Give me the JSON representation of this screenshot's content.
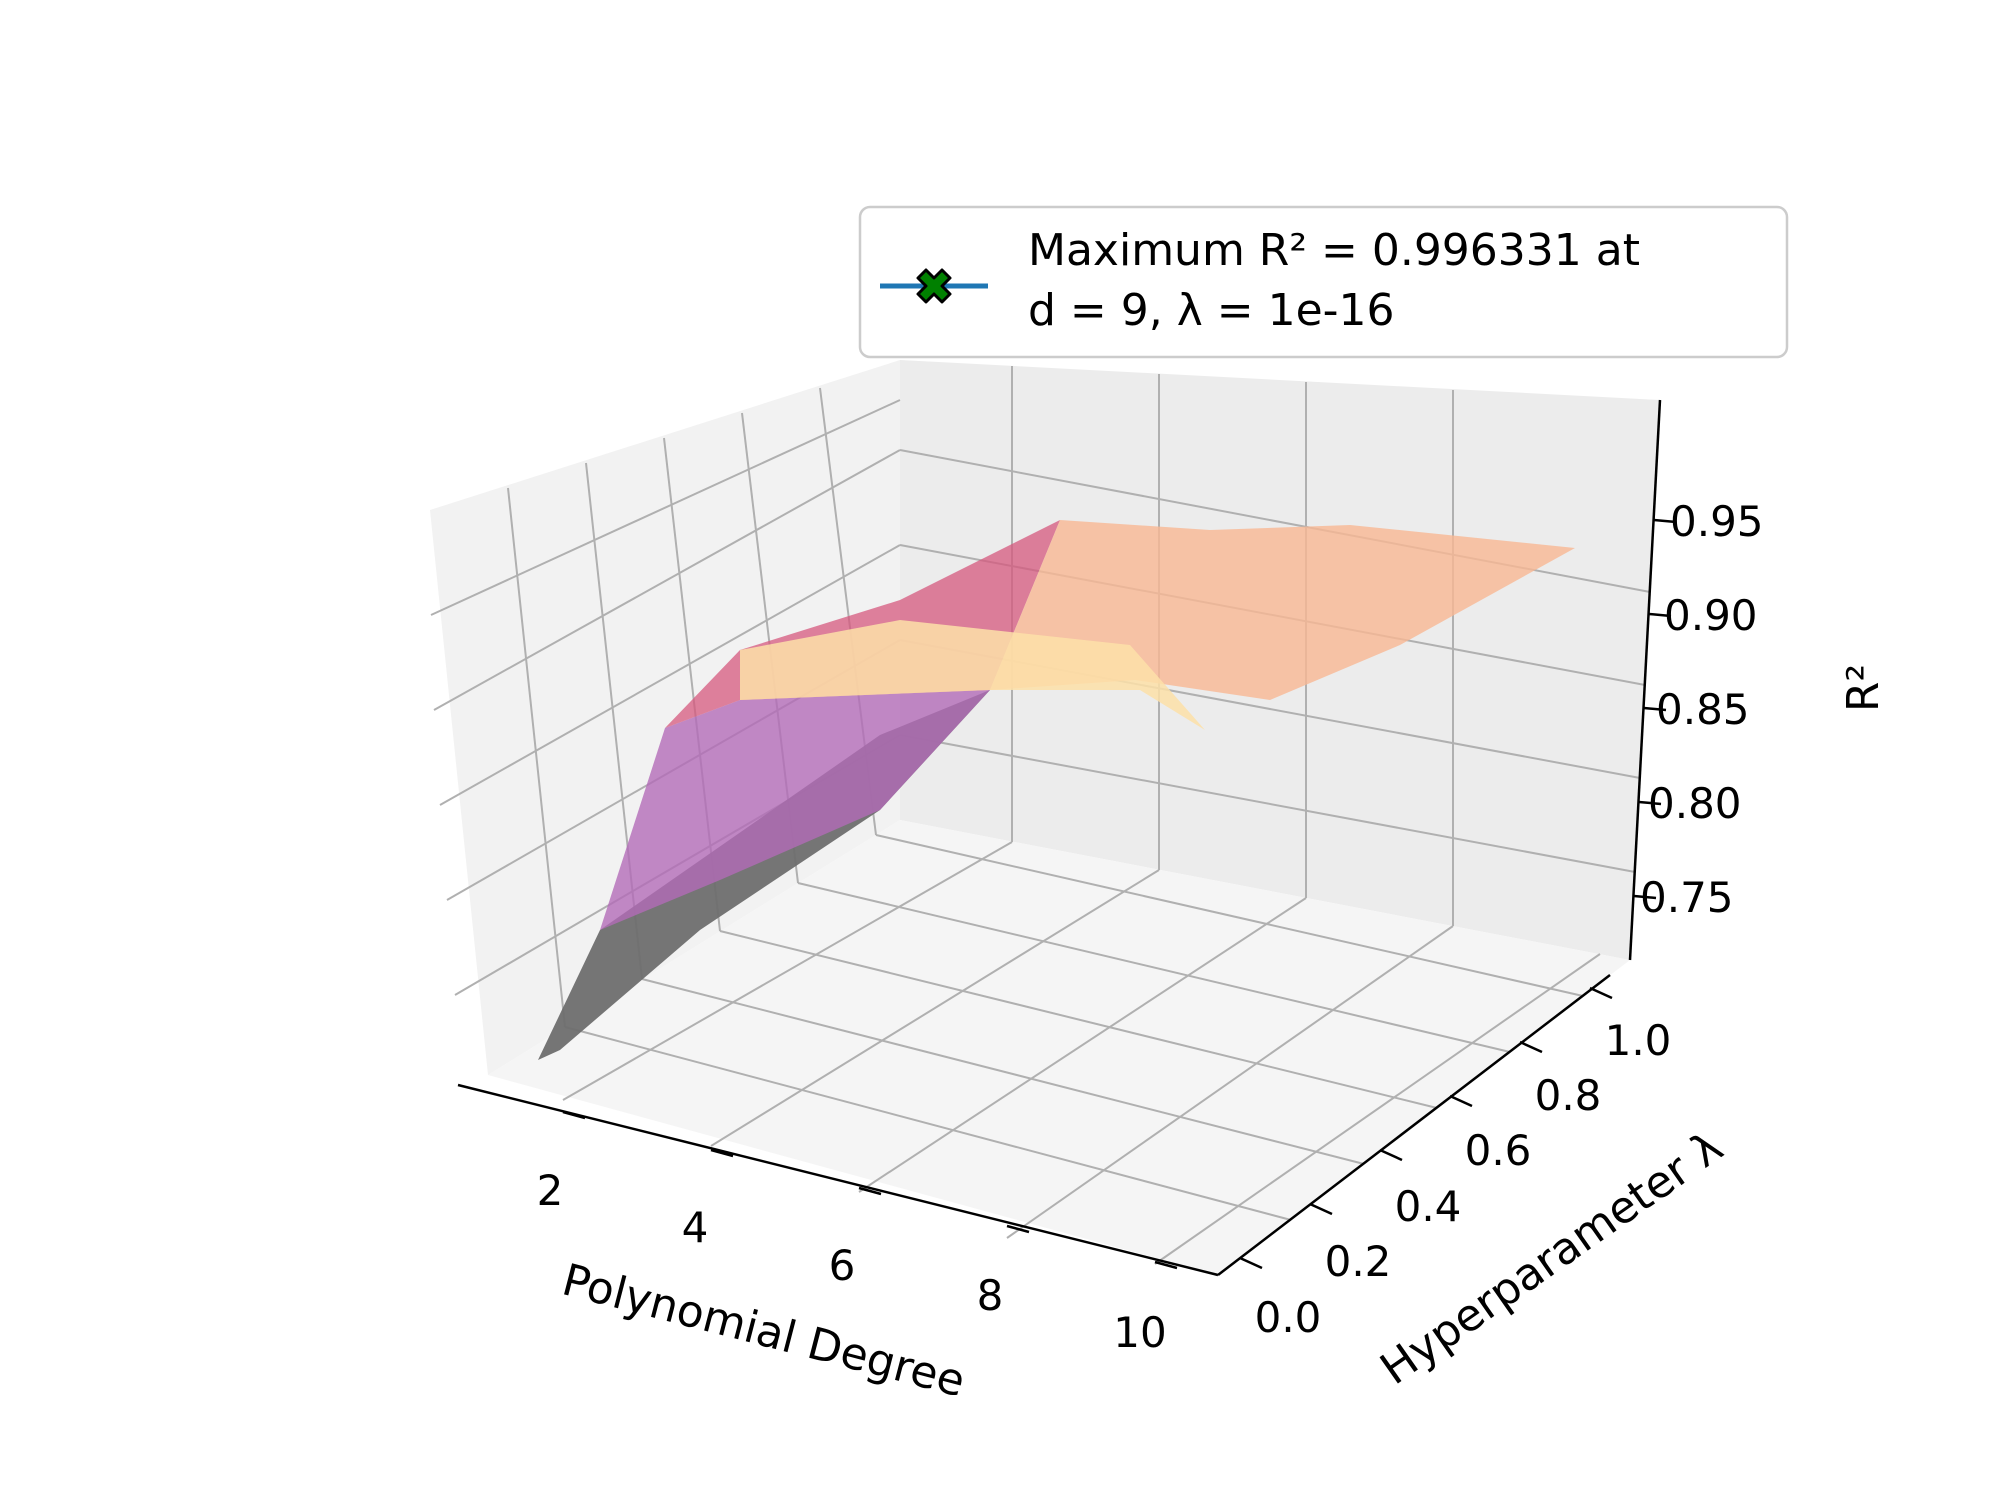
{
  "chart_data": {
    "type": "surface3d",
    "title": "",
    "xlabel": "Polynomial Degree",
    "ylabel": "Hyperparameter λ",
    "zlabel": "R²",
    "x_ticks": [
      "2",
      "4",
      "6",
      "8",
      "10"
    ],
    "y_ticks": [
      "0.0",
      "0.2",
      "0.4",
      "0.6",
      "0.8",
      "1.0"
    ],
    "z_ticks": [
      "0.75",
      "0.80",
      "0.85",
      "0.90",
      "0.95"
    ],
    "xlim": [
      1,
      10
    ],
    "ylim": [
      0,
      1
    ],
    "zlim": [
      0.72,
      1.0
    ],
    "grid": true,
    "legend_position": "top-right",
    "legend": {
      "line1": "Maximum R² = 0.996331 at",
      "line2": "d = 9, λ = 1e-16"
    },
    "maximum": {
      "d": 9,
      "lambda": 1e-16,
      "r2": 0.996331
    },
    "colors": {
      "surface_low": "#b36bb8",
      "surface_mid": "#d5587e",
      "surface_high": "#f9b894",
      "surface_peak": "#fde0a8",
      "underside": "#6e6e6e",
      "legend_line": "#1f77b4",
      "legend_marker": "#008000"
    },
    "surface_points": [
      {
        "d": 1,
        "lambda": 0.0,
        "r2": 0.735
      },
      {
        "d": 1,
        "lambda": 1.0,
        "r2": 0.735
      },
      {
        "d": 2,
        "lambda": 0.0,
        "r2": 0.9
      },
      {
        "d": 2,
        "lambda": 1.0,
        "r2": 0.9
      },
      {
        "d": 5,
        "lambda": 0.0,
        "r2": 0.975
      },
      {
        "d": 5,
        "lambda": 1.0,
        "r2": 0.955
      },
      {
        "d": 9,
        "lambda": 0.0,
        "r2": 0.996331
      },
      {
        "d": 10,
        "lambda": 0.0,
        "r2": 0.99
      },
      {
        "d": 10,
        "lambda": 1.0,
        "r2": 0.9
      }
    ]
  }
}
